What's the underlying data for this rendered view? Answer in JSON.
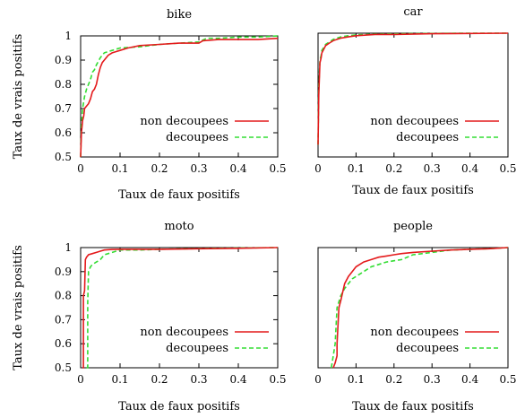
{
  "chart_data": [
    {
      "type": "line",
      "title": "bike",
      "xlabel": "Taux de faux positifs",
      "ylabel": "Taux de vrais positifs",
      "xlim": [
        0,
        0.5
      ],
      "ylim": [
        0.5,
        1.0
      ],
      "xticks": [
        "0",
        "0.1",
        "0.2",
        "0.3",
        "0.4",
        "0.5"
      ],
      "yticks": [
        "0.5",
        "0.6",
        "0.7",
        "0.8",
        "0.9",
        "1"
      ],
      "legend_position": "bottom-right",
      "series": [
        {
          "name": "non decoupees",
          "color": "#e41a1c",
          "dash": "solid",
          "x": [
            0,
            0.002,
            0.005,
            0.008,
            0.01,
            0.015,
            0.02,
            0.025,
            0.03,
            0.035,
            0.04,
            0.045,
            0.05,
            0.055,
            0.06,
            0.07,
            0.08,
            0.1,
            0.12,
            0.15,
            0.2,
            0.25,
            0.3,
            0.31,
            0.35,
            0.4,
            0.45,
            0.5
          ],
          "y": [
            0.5,
            0.6,
            0.65,
            0.67,
            0.7,
            0.71,
            0.72,
            0.74,
            0.77,
            0.78,
            0.8,
            0.84,
            0.87,
            0.89,
            0.9,
            0.92,
            0.93,
            0.94,
            0.95,
            0.96,
            0.965,
            0.97,
            0.97,
            0.98,
            0.985,
            0.985,
            0.985,
            0.99
          ]
        },
        {
          "name": "decoupees",
          "color": "#33dd33",
          "dash": "dashed",
          "x": [
            0,
            0.002,
            0.005,
            0.01,
            0.015,
            0.02,
            0.025,
            0.03,
            0.035,
            0.04,
            0.05,
            0.06,
            0.08,
            0.1,
            0.15,
            0.2,
            0.25,
            0.3,
            0.32,
            0.35,
            0.4,
            0.45,
            0.5
          ],
          "y": [
            0.5,
            0.63,
            0.7,
            0.75,
            0.78,
            0.8,
            0.82,
            0.85,
            0.86,
            0.88,
            0.91,
            0.93,
            0.94,
            0.95,
            0.955,
            0.965,
            0.97,
            0.975,
            0.99,
            0.99,
            0.995,
            0.995,
            1.0
          ]
        }
      ]
    },
    {
      "type": "line",
      "title": "car",
      "xlabel": "Taux de faux positifs",
      "ylabel": "",
      "xlim": [
        0,
        0.5
      ],
      "ylim": [
        0.5,
        1.0
      ],
      "xticks": [
        "0",
        "0.1",
        "0.2",
        "0.3",
        "0.4",
        "0.5"
      ],
      "yticks": [],
      "legend_position": "bottom-right",
      "series": [
        {
          "name": "non decoupees",
          "color": "#e41a1c",
          "dash": "solid",
          "x": [
            0,
            0.002,
            0.005,
            0.008,
            0.01,
            0.02,
            0.03,
            0.04,
            0.05,
            0.06,
            0.08,
            0.1,
            0.15,
            0.2,
            0.3,
            0.4,
            0.5
          ],
          "y": [
            0.55,
            0.75,
            0.88,
            0.9,
            0.92,
            0.95,
            0.96,
            0.97,
            0.975,
            0.98,
            0.985,
            0.99,
            0.995,
            0.995,
            0.998,
            0.999,
            1.0
          ]
        },
        {
          "name": "decoupees",
          "color": "#33dd33",
          "dash": "dashed",
          "x": [
            0,
            0.002,
            0.005,
            0.008,
            0.01,
            0.02,
            0.03,
            0.04,
            0.05,
            0.06,
            0.08,
            0.1,
            0.15,
            0.2,
            0.3,
            0.4,
            0.5
          ],
          "y": [
            0.55,
            0.78,
            0.89,
            0.91,
            0.93,
            0.955,
            0.965,
            0.975,
            0.98,
            0.985,
            0.99,
            0.993,
            0.996,
            0.997,
            0.999,
            1.0,
            1.0
          ]
        }
      ]
    },
    {
      "type": "line",
      "title": "moto",
      "xlabel": "Taux de faux positifs",
      "ylabel": "Taux de vrais positifs",
      "xlim": [
        0,
        0.5
      ],
      "ylim": [
        0.5,
        1.0
      ],
      "xticks": [
        "0",
        "0.1",
        "0.2",
        "0.3",
        "0.4",
        "0.5"
      ],
      "yticks": [
        "0.5",
        "0.6",
        "0.7",
        "0.8",
        "0.9",
        "1"
      ],
      "legend_position": "bottom-right",
      "series": [
        {
          "name": "non decoupees",
          "color": "#e41a1c",
          "dash": "solid",
          "x": [
            0.005,
            0.007,
            0.007,
            0.01,
            0.012,
            0.015,
            0.02,
            0.03,
            0.04,
            0.05,
            0.06,
            0.08,
            0.1,
            0.2,
            0.3,
            0.4,
            0.5
          ],
          "y": [
            0.5,
            0.5,
            0.8,
            0.82,
            0.95,
            0.96,
            0.97,
            0.975,
            0.98,
            0.985,
            0.99,
            0.992,
            0.993,
            0.993,
            0.995,
            0.997,
            1.0
          ]
        },
        {
          "name": "decoupees",
          "color": "#33dd33",
          "dash": "dashed",
          "x": [
            0.015,
            0.018,
            0.018,
            0.02,
            0.025,
            0.03,
            0.04,
            0.05,
            0.06,
            0.08,
            0.1,
            0.15,
            0.2,
            0.3,
            0.4,
            0.5
          ],
          "y": [
            0.5,
            0.5,
            0.77,
            0.9,
            0.92,
            0.93,
            0.94,
            0.95,
            0.97,
            0.98,
            0.99,
            0.99,
            0.993,
            0.996,
            0.998,
            1.0
          ]
        }
      ]
    },
    {
      "type": "line",
      "title": "people",
      "xlabel": "Taux de faux positifs",
      "ylabel": "",
      "xlim": [
        0,
        0.5
      ],
      "ylim": [
        0.5,
        1.0
      ],
      "xticks": [
        "0",
        "0.1",
        "0.2",
        "0.3",
        "0.4",
        "0.5"
      ],
      "yticks": [],
      "legend_position": "bottom-right",
      "series": [
        {
          "name": "non decoupees",
          "color": "#e41a1c",
          "dash": "solid",
          "x": [
            0.04,
            0.045,
            0.05,
            0.05,
            0.055,
            0.06,
            0.07,
            0.08,
            0.09,
            0.1,
            0.12,
            0.14,
            0.16,
            0.18,
            0.2,
            0.22,
            0.25,
            0.3,
            0.35,
            0.4,
            0.45,
            0.5
          ],
          "y": [
            0.5,
            0.52,
            0.55,
            0.6,
            0.75,
            0.78,
            0.85,
            0.88,
            0.9,
            0.92,
            0.94,
            0.95,
            0.96,
            0.965,
            0.97,
            0.975,
            0.98,
            0.985,
            0.99,
            0.993,
            0.995,
            1.0
          ]
        },
        {
          "name": "decoupees",
          "color": "#33dd33",
          "dash": "dashed",
          "x": [
            0.035,
            0.04,
            0.045,
            0.05,
            0.06,
            0.07,
            0.08,
            0.09,
            0.1,
            0.12,
            0.14,
            0.16,
            0.18,
            0.2,
            0.22,
            0.25,
            0.3,
            0.35,
            0.4,
            0.45,
            0.5
          ],
          "y": [
            0.5,
            0.55,
            0.6,
            0.75,
            0.8,
            0.83,
            0.85,
            0.87,
            0.88,
            0.9,
            0.92,
            0.93,
            0.94,
            0.945,
            0.95,
            0.97,
            0.98,
            0.99,
            0.993,
            0.995,
            1.0
          ]
        }
      ]
    }
  ]
}
